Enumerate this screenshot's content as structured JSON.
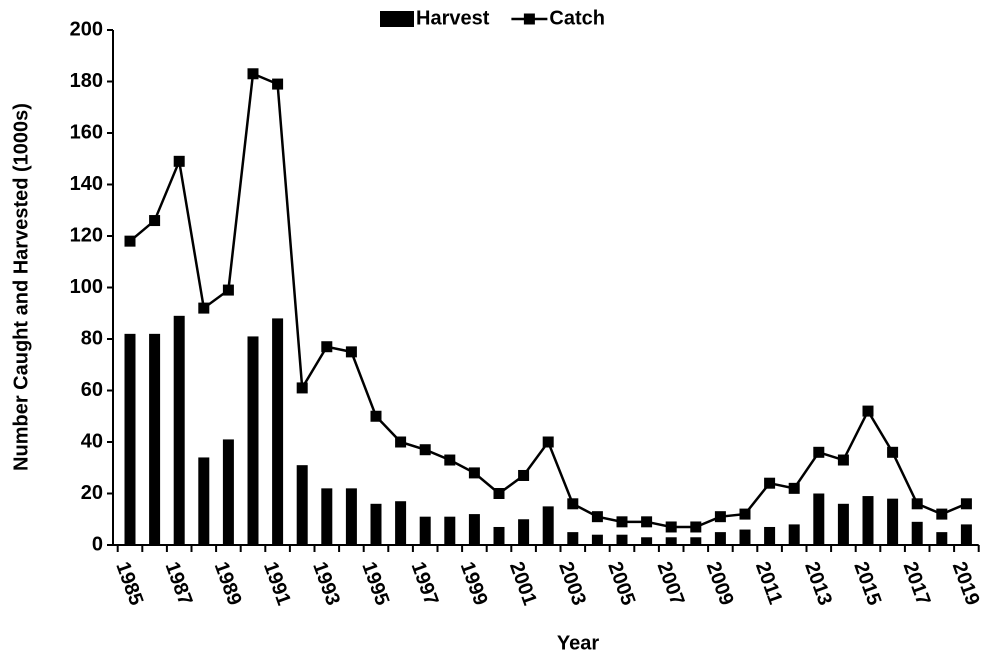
{
  "chart_data": {
    "type": "bar",
    "x_label": "Year",
    "y_label": "Number Caught and Harvested (1000s)",
    "categories": [
      "1985",
      null,
      "1987",
      null,
      "1989",
      null,
      "1991",
      null,
      "1993",
      null,
      "1995",
      null,
      "1997",
      null,
      "1999",
      null,
      "2001",
      null,
      "2003",
      null,
      "2005",
      null,
      "2007",
      null,
      "2009",
      null,
      "2011",
      null,
      "2013",
      null,
      "2015",
      null,
      "2017",
      null,
      "2019"
    ],
    "series": [
      {
        "name": "Harvest",
        "type": "bar",
        "color": "#000000",
        "values": [
          82,
          82,
          89,
          34,
          41,
          81,
          88,
          31,
          22,
          22,
          16,
          17,
          11,
          11,
          12,
          7,
          10,
          15,
          5,
          4,
          4,
          3,
          3,
          3,
          5,
          6,
          7,
          8,
          20,
          16,
          19,
          18,
          9,
          5,
          8
        ]
      },
      {
        "name": "Catch",
        "type": "line",
        "color": "#000000",
        "values": [
          118,
          126,
          149,
          92,
          99,
          183,
          179,
          61,
          77,
          75,
          50,
          40,
          37,
          33,
          28,
          20,
          27,
          40,
          16,
          11,
          9,
          9,
          7,
          7,
          11,
          12,
          24,
          22,
          36,
          33,
          52,
          36,
          16,
          12,
          16
        ]
      }
    ],
    "ylim": [
      0,
      200
    ],
    "yticks": [
      0,
      20,
      40,
      60,
      80,
      100,
      120,
      140,
      160,
      180,
      200
    ],
    "legend": "top"
  }
}
